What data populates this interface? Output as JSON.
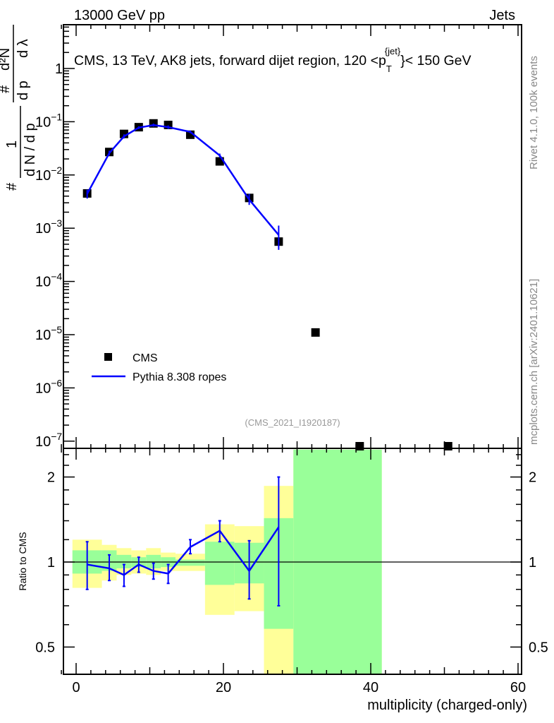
{
  "header": {
    "left": "13000 GeV pp",
    "right": "Jets"
  },
  "side": {
    "rivet": "Rivet 4.1.0,  100k events",
    "mcplots": "mcplots.cern.ch [arXiv:2401.10621]"
  },
  "chart_data": {
    "type": "line",
    "title": "CMS, 13 TeV, AK8 jets, forward dijet region, 120 <p_T^{jet}< 150 GeV",
    "title_parts": {
      "a": "CMS, 13 TeV, AK8 jets, forward dijet region, 120 <p",
      "sub": "T",
      "sup": "{jet}",
      "b": "}< 150 GeV"
    },
    "analysis": "(CMS_2021_I1920187)",
    "xlabel": "multiplicity (charged-only)",
    "ylabel_parts": {
      "one": "1",
      "hash1": "#",
      "denom": "d N / d p",
      "T": "T",
      "num": "d²N",
      "hash2": "#",
      "dpt": "d p",
      "dl": "d λ"
    },
    "ratio_ylabel": "Ratio to CMS",
    "xlim": [
      -2,
      60.5
    ],
    "ylim": [
      8e-08,
      3
    ],
    "ratio_ylim": [
      0.36,
      2.5
    ],
    "xticks": [
      "0",
      "20",
      "40",
      "60"
    ],
    "yticks": [
      "1",
      "10^-1",
      "10^-2",
      "10^-3",
      "10^-4",
      "10^-5",
      "10^-6",
      "10^-7"
    ],
    "ratio_yticks": [
      "0.5",
      "1",
      "2"
    ],
    "legend": {
      "position": "bottom-left",
      "entries": [
        "CMS",
        "Pythia 8.308 ropes"
      ]
    },
    "data": {
      "name": "CMS",
      "x": [
        1.5,
        4.5,
        6.5,
        8.5,
        10.5,
        12.5,
        15.5,
        19.5,
        23.5,
        27.5,
        32.5,
        38.5,
        50.5
      ],
      "y": [
        0.0045,
        0.027,
        0.059,
        0.079,
        0.093,
        0.087,
        0.057,
        0.018,
        0.0037,
        0.00056,
        1.1e-05,
        8e-08,
        8e-08
      ]
    },
    "mc": {
      "name": "Pythia 8.308 ropes",
      "x": [
        1.5,
        4.5,
        6.5,
        8.5,
        10.5,
        12.5,
        15.5,
        19.5,
        23.5,
        27.5
      ],
      "ratio": [
        0.98,
        0.95,
        0.9,
        0.98,
        0.93,
        0.91,
        1.13,
        1.29,
        0.93,
        1.33
      ],
      "ratio_err_lo": [
        0.8,
        0.86,
        0.82,
        0.92,
        0.87,
        0.84,
        1.07,
        1.18,
        0.74,
        0.7
      ],
      "ratio_err_hi": [
        1.18,
        1.06,
        0.98,
        1.04,
        0.99,
        0.98,
        1.2,
        1.4,
        1.19,
        2.0
      ]
    },
    "bands": {
      "edges": [
        -0.5,
        3.5,
        5.5,
        7.5,
        9.5,
        11.5,
        13.5,
        17.5,
        21.5,
        25.5,
        29.5,
        41.5
      ],
      "yellow_lo": [
        0.81,
        0.86,
        0.9,
        0.91,
        0.9,
        0.93,
        0.93,
        0.65,
        0.67,
        0.3,
        0.3
      ],
      "yellow_hi": [
        1.2,
        1.15,
        1.12,
        1.1,
        1.12,
        1.08,
        1.07,
        1.36,
        1.34,
        1.86,
        2.5
      ],
      "green_lo": [
        0.91,
        0.93,
        0.95,
        0.96,
        0.95,
        0.96,
        0.97,
        0.83,
        0.84,
        0.58,
        0.3
      ],
      "green_hi": [
        1.1,
        1.1,
        1.06,
        1.04,
        1.06,
        1.04,
        1.02,
        1.18,
        1.17,
        1.43,
        2.5
      ]
    },
    "colors": {
      "mc": "#0000ff",
      "yellow": "#ffff99",
      "green": "#99ff99"
    }
  }
}
